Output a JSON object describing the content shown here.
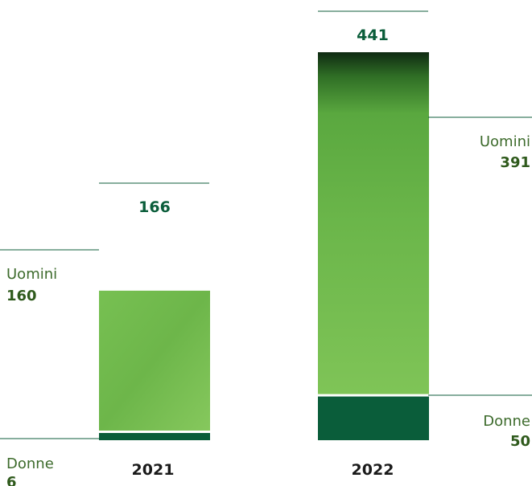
{
  "chart_data": {
    "type": "bar",
    "stacked": true,
    "categories": [
      "2021",
      "2022"
    ],
    "totals": [
      166,
      441
    ],
    "series": [
      {
        "name": "Uomini",
        "values": [
          160,
          391
        ],
        "color": "#6ab34a"
      },
      {
        "name": "Donne",
        "values": [
          6,
          50
        ],
        "color": "#0a5d3a"
      }
    ],
    "grid": false,
    "legend": "none"
  },
  "labels": {
    "y2021": {
      "men_name": "Uomini",
      "men_value": "160",
      "women_name": "Donne",
      "women_value": "6",
      "total": "166",
      "year": "2021"
    },
    "y2022": {
      "men_name": "Uomini",
      "men_value": "391",
      "women_name": "Donne",
      "women_value": "50",
      "total": "441",
      "year": "2022"
    }
  },
  "colors": {
    "men_light": "#8fd064",
    "men_mid": "#6ab34a",
    "men_dark": "#3f8a30",
    "men_darkest": "#0f2a12",
    "women": "#0a5d3a",
    "rule": "#0f5e3b"
  }
}
